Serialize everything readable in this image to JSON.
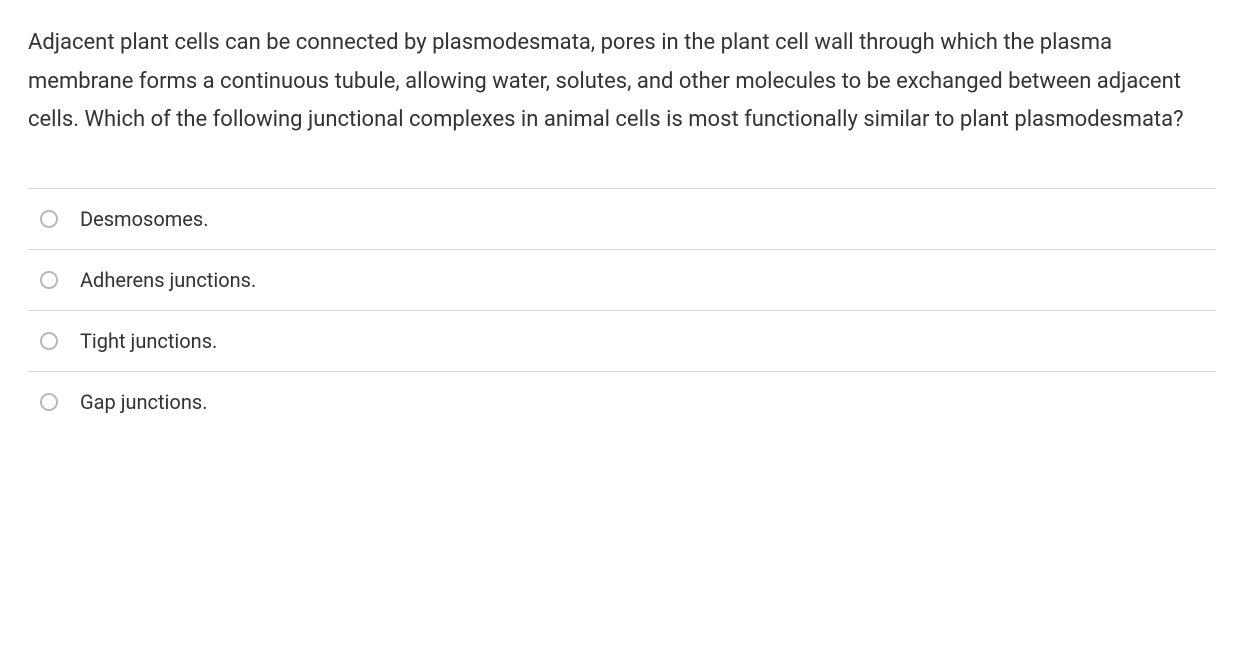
{
  "question": {
    "text": "Adjacent plant cells can be connected by plasmodesmata, pores in the plant cell wall through which the plasma membrane forms a continuous tubule, allowing water, solutes, and other molecules to be exchanged between adjacent cells. Which of the following junctional complexes in animal cells is most functionally similar to plant plasmodesmata?",
    "text_color": "#333333",
    "font_size": 22
  },
  "options": [
    {
      "label": "Desmosomes.",
      "selected": false
    },
    {
      "label": "Adherens junctions.",
      "selected": false
    },
    {
      "label": "Tight junctions.",
      "selected": false
    },
    {
      "label": "Gap junctions.",
      "selected": false
    }
  ],
  "styling": {
    "background_color": "#ffffff",
    "border_color": "#d8d8d8",
    "radio_border_color": "#b8b8b8",
    "option_text_color": "#333333",
    "option_font_size": 20
  }
}
